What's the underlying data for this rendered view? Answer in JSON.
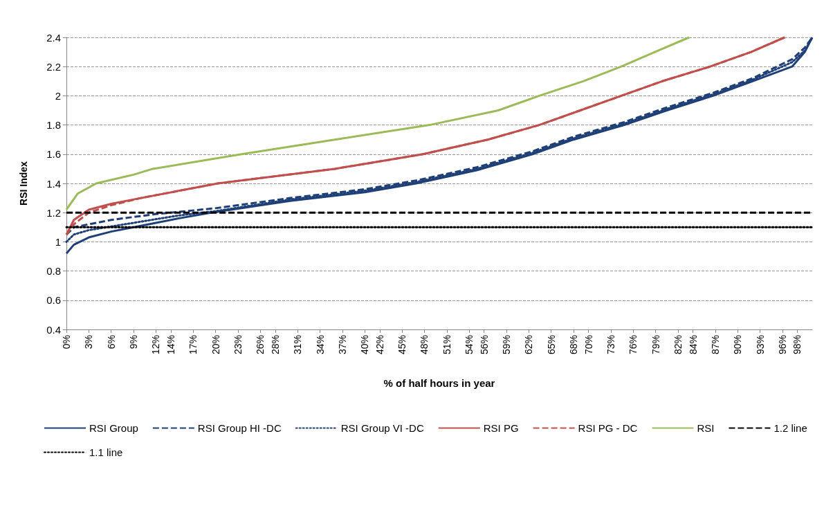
{
  "chart_data": {
    "type": "line",
    "xlabel": "% of half hours in year",
    "ylabel": "RSI Index",
    "xlim": [
      0,
      100
    ],
    "ylim": [
      0.4,
      2.4
    ],
    "xticks": [
      {
        "value": 0,
        "label": "0%"
      },
      {
        "value": 3,
        "label": "3%"
      },
      {
        "value": 6,
        "label": "6%"
      },
      {
        "value": 9,
        "label": "9%"
      },
      {
        "value": 12,
        "label": "12%"
      },
      {
        "value": 14,
        "label": "14%"
      },
      {
        "value": 17,
        "label": "17%"
      },
      {
        "value": 20,
        "label": "20%"
      },
      {
        "value": 23,
        "label": "23%"
      },
      {
        "value": 26,
        "label": "26%"
      },
      {
        "value": 28,
        "label": "28%"
      },
      {
        "value": 31,
        "label": "31%"
      },
      {
        "value": 34,
        "label": "34%"
      },
      {
        "value": 37,
        "label": "37%"
      },
      {
        "value": 40,
        "label": "40%"
      },
      {
        "value": 42,
        "label": "42%"
      },
      {
        "value": 45,
        "label": "45%"
      },
      {
        "value": 48,
        "label": "48%"
      },
      {
        "value": 51,
        "label": "51%"
      },
      {
        "value": 54,
        "label": "54%"
      },
      {
        "value": 56,
        "label": "56%"
      },
      {
        "value": 59,
        "label": "59%"
      },
      {
        "value": 62,
        "label": "62%"
      },
      {
        "value": 65,
        "label": "65%"
      },
      {
        "value": 68,
        "label": "68%"
      },
      {
        "value": 70,
        "label": "70%"
      },
      {
        "value": 73,
        "label": "73%"
      },
      {
        "value": 76,
        "label": "76%"
      },
      {
        "value": 79,
        "label": "79%"
      },
      {
        "value": 82,
        "label": "82%"
      },
      {
        "value": 84,
        "label": "84%"
      },
      {
        "value": 87,
        "label": "87%"
      },
      {
        "value": 90,
        "label": "90%"
      },
      {
        "value": 93,
        "label": "93%"
      },
      {
        "value": 96,
        "label": "96%"
      },
      {
        "value": 98,
        "label": "98%"
      }
    ],
    "yticks": [
      0.4,
      0.6,
      0.8,
      1,
      1.2,
      1.4,
      1.6,
      1.8,
      2,
      2.2,
      2.4
    ],
    "grid": "y",
    "legend": "bottom",
    "marker": "none",
    "series": [
      {
        "name": "RSI Group",
        "color": "#1f3f77",
        "line_style": "solid",
        "x": [
          0,
          1,
          3,
          6,
          10,
          15,
          19.4,
          30,
          40,
          46.9,
          55,
          62.5,
          68,
          74.8,
          80.5,
          86.7,
          92,
          97.3,
          99,
          100
        ],
        "values": [
          0.92,
          0.98,
          1.03,
          1.07,
          1.11,
          1.16,
          1.2,
          1.28,
          1.34,
          1.4,
          1.49,
          1.6,
          1.7,
          1.8,
          1.9,
          2,
          2.1,
          2.2,
          2.3,
          2.4
        ]
      },
      {
        "name": "RSI Group HI -DC",
        "color": "#1f3f77",
        "line_style": "dashed",
        "x": [
          0,
          1,
          3,
          6,
          12,
          20,
          30,
          40,
          46.9,
          55,
          62.5,
          68,
          74.8,
          80.5,
          86.7,
          92,
          97.3,
          99,
          100
        ],
        "values": [
          1.05,
          1.1,
          1.12,
          1.15,
          1.19,
          1.23,
          1.3,
          1.36,
          1.42,
          1.51,
          1.62,
          1.72,
          1.82,
          1.92,
          2.02,
          2.12,
          2.25,
          2.33,
          2.4
        ]
      },
      {
        "name": "RSI Group VI -DC",
        "color": "#1f3f77",
        "line_style": "dotted",
        "x": [
          0,
          1,
          3,
          9,
          15,
          20,
          30,
          40,
          46.9,
          55,
          62.5,
          68,
          74.8,
          80.5,
          86.7,
          92,
          97.3,
          99,
          100
        ],
        "values": [
          1,
          1.05,
          1.08,
          1.13,
          1.18,
          1.21,
          1.29,
          1.35,
          1.41,
          1.5,
          1.61,
          1.71,
          1.81,
          1.91,
          2.01,
          2.11,
          2.23,
          2.31,
          2.4
        ]
      },
      {
        "name": "RSI PG",
        "color": "#c0504d",
        "line_style": "solid",
        "x": [
          0,
          1,
          3,
          6,
          10,
          20.3,
          36,
          47.8,
          56.5,
          63.4,
          68.9,
          74.4,
          79.9,
          86.3,
          91.8,
          96.3
        ],
        "values": [
          1.05,
          1.15,
          1.22,
          1.26,
          1.3,
          1.4,
          1.5,
          1.6,
          1.7,
          1.8,
          1.9,
          2,
          2.1,
          2.2,
          2.3,
          2.4
        ]
      },
      {
        "name": "RSI PG - DC",
        "color": "#c0504d",
        "line_style": "dashed",
        "x": [
          0,
          1,
          3,
          6,
          10,
          20.3,
          36,
          47.8,
          56.5,
          63.4,
          68.9,
          74.4,
          79.9,
          86.3,
          91.8,
          96.3
        ],
        "values": [
          1.05,
          1.12,
          1.2,
          1.25,
          1.3,
          1.4,
          1.5,
          1.6,
          1.7,
          1.8,
          1.9,
          2,
          2.1,
          2.2,
          2.3,
          2.4
        ]
      },
      {
        "name": "RSI",
        "color": "#9bbb59",
        "line_style": "solid",
        "x": [
          0,
          1.5,
          4,
          9,
          11.6,
          23.5,
          36,
          48.7,
          57.9,
          63.4,
          69.3,
          74.4,
          78.9,
          83.5
        ],
        "values": [
          1.22,
          1.33,
          1.4,
          1.46,
          1.5,
          1.6,
          1.7,
          1.8,
          1.9,
          2,
          2.1,
          2.2,
          2.3,
          2.4
        ]
      },
      {
        "name": "1.2 line",
        "color": "#000000",
        "line_style": "dashed",
        "x": [
          0,
          100
        ],
        "values": [
          1.2,
          1.2
        ]
      },
      {
        "name": "1.1 line",
        "color": "#000000",
        "line_style": "dotted",
        "x": [
          0,
          100
        ],
        "values": [
          1.1,
          1.1
        ]
      }
    ]
  }
}
